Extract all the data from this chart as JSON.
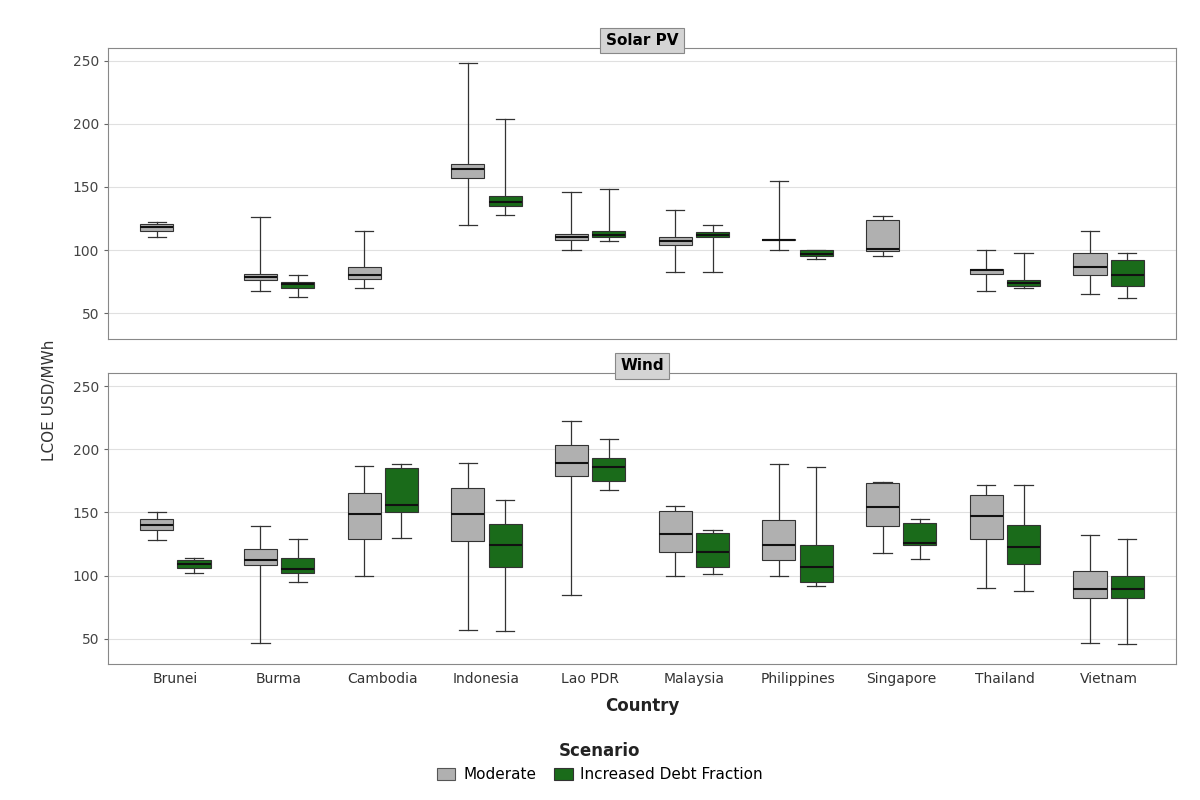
{
  "countries": [
    "Brunei",
    "Burma",
    "Cambodia",
    "Indonesia",
    "Lao PDR",
    "Malaysia",
    "Philippines",
    "Singapore",
    "Thailand",
    "Vietnam"
  ],
  "solar_pv": {
    "moderate": {
      "whislo": [
        110,
        68,
        70,
        120,
        100,
        83,
        100,
        95,
        68,
        65
      ],
      "q1": [
        115,
        76,
        77,
        157,
        108,
        104,
        108,
        99,
        81,
        80
      ],
      "med": [
        118,
        79,
        80,
        164,
        110,
        107,
        108,
        101,
        84,
        87
      ],
      "q3": [
        121,
        81,
        87,
        168,
        113,
        110,
        109,
        124,
        85,
        98
      ],
      "whishi": [
        122,
        126,
        115,
        248,
        146,
        132,
        155,
        127,
        100,
        115
      ]
    },
    "increased": {
      "whislo": [
        null,
        63,
        null,
        128,
        107,
        83,
        93,
        null,
        70,
        62
      ],
      "q1": [
        null,
        70,
        null,
        135,
        110,
        110,
        95,
        null,
        72,
        72
      ],
      "med": [
        null,
        73,
        null,
        138,
        112,
        112,
        97,
        null,
        74,
        80
      ],
      "q3": [
        null,
        75,
        null,
        143,
        115,
        114,
        100,
        null,
        76,
        92
      ],
      "whishi": [
        null,
        80,
        null,
        204,
        148,
        120,
        100,
        null,
        98,
        98
      ]
    }
  },
  "wind": {
    "moderate": {
      "whislo": [
        128,
        47,
        100,
        57,
        85,
        100,
        100,
        118,
        90,
        47
      ],
      "q1": [
        136,
        108,
        129,
        127,
        179,
        119,
        112,
        139,
        129,
        82
      ],
      "med": [
        140,
        112,
        149,
        149,
        189,
        133,
        124,
        154,
        147,
        89
      ],
      "q3": [
        145,
        121,
        165,
        169,
        203,
        151,
        144,
        173,
        164,
        104
      ],
      "whishi": [
        150,
        139,
        187,
        189,
        222,
        155,
        188,
        174,
        172,
        132
      ]
    },
    "increased": {
      "whislo": [
        102,
        95,
        130,
        56,
        168,
        101,
        92,
        113,
        88,
        46
      ],
      "q1": [
        106,
        102,
        150,
        107,
        175,
        107,
        95,
        124,
        109,
        82
      ],
      "med": [
        109,
        105,
        156,
        124,
        186,
        119,
        107,
        126,
        123,
        89
      ],
      "q3": [
        112,
        114,
        185,
        141,
        193,
        134,
        124,
        142,
        140,
        100
      ],
      "whishi": [
        114,
        129,
        188,
        160,
        208,
        136,
        186,
        145,
        172,
        129
      ]
    }
  },
  "moderate_fill": "#b0b0b0",
  "increased_fill": "#1a6b1a",
  "panel_title_bg": "#d4d4d4",
  "plot_background": "#ffffff",
  "grid_color": "#e0e0e0",
  "ylim": [
    30,
    260
  ],
  "yticks": [
    50,
    100,
    150,
    200,
    250
  ],
  "title_solar": "Solar PV",
  "title_wind": "Wind",
  "ylabel": "LCOE USD/MWh",
  "xlabel": "Country"
}
